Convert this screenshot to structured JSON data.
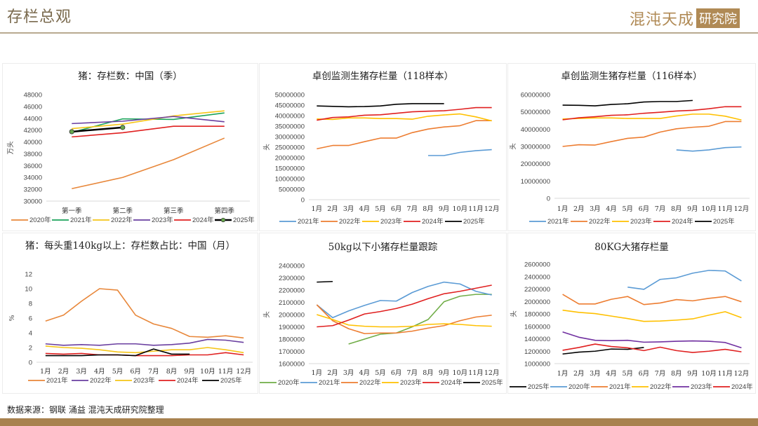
{
  "header": {
    "title": "存栏总观",
    "logo_main": "混沌天成",
    "logo_box": "研究院"
  },
  "footer": {
    "source": "数据来源：钢联 涌益 混沌天成研究院整理"
  },
  "colors": {
    "accent": "#a8824f",
    "2020_q": "#e8873a",
    "2021_q": "#1aa35a",
    "2022_q": "#f5c518",
    "2023_q": "#6a3fa0",
    "2024_q": "#e02020",
    "2025_q": "#000000"
  },
  "chart_data": [
    {
      "id": "quarterly",
      "type": "line",
      "title": "猪：存栏数：中国（季）",
      "ylabel": "万头",
      "xlabel": "",
      "categories": [
        "第一季",
        "第二季",
        "第三季",
        "第四季"
      ],
      "ylim": [
        30000,
        48000
      ],
      "ystep": 2000,
      "grid": false,
      "legend": "bottom",
      "series": [
        {
          "name": "2020年",
          "color": "#e8873a",
          "values": [
            32100,
            34000,
            37000,
            40650
          ]
        },
        {
          "name": "2021年",
          "color": "#1aa35a",
          "values": [
            41600,
            43900,
            43800,
            44900
          ]
        },
        {
          "name": "2022年",
          "color": "#f5c518",
          "values": [
            42250,
            43000,
            44400,
            45250
          ]
        },
        {
          "name": "2023年",
          "color": "#6a3fa0",
          "values": [
            43100,
            43500,
            44300,
            43400
          ]
        },
        {
          "name": "2024年",
          "color": "#e02020",
          "values": [
            40850,
            41550,
            42650,
            42650
          ]
        },
        {
          "name": "2025年",
          "color": "#000000",
          "marker": true,
          "values": [
            41730,
            42450,
            null,
            null
          ]
        }
      ]
    },
    {
      "id": "zhuochuang118",
      "type": "line",
      "title": "卓创监测生猪存栏量（118样本）",
      "ylabel": "头",
      "xlabel": "",
      "categories": [
        "1月",
        "2月",
        "3月",
        "4月",
        "5月",
        "6月",
        "7月",
        "8月",
        "9月",
        "10月",
        "11月",
        "12月"
      ],
      "ylim": [
        0,
        50000000
      ],
      "ystep": 5000000,
      "grid": false,
      "legend": "bottom",
      "series": [
        {
          "name": "2021年",
          "color": "#5b9bd5",
          "values": [
            null,
            null,
            null,
            null,
            null,
            null,
            null,
            21000000,
            21000000,
            22500000,
            23300000,
            23800000
          ]
        },
        {
          "name": "2022年",
          "color": "#ed7d31",
          "values": [
            24200000,
            25800000,
            25800000,
            27600000,
            29300000,
            29300000,
            31900000,
            33600000,
            34600000,
            35200000,
            37600000,
            37600000
          ]
        },
        {
          "name": "2023年",
          "color": "#ffc000",
          "values": [
            38400000,
            38200000,
            38900000,
            38900000,
            38600000,
            38600000,
            38300000,
            39700000,
            40300000,
            40800000,
            39400000,
            37500000
          ]
        },
        {
          "name": "2024年",
          "color": "#e02020",
          "values": [
            37800000,
            39100000,
            39400000,
            40200000,
            40400000,
            41100000,
            41800000,
            42100000,
            42300000,
            43000000,
            43800000,
            43800000
          ]
        },
        {
          "name": "2025年",
          "color": "#000000",
          "values": [
            44600000,
            44400000,
            44200000,
            44300000,
            44600000,
            45400000,
            45700000,
            45700000,
            45700000,
            null,
            null,
            null
          ]
        }
      ]
    },
    {
      "id": "zhuochuang116",
      "type": "line",
      "title": "卓创监测生猪存栏量（116样本）",
      "ylabel": "头",
      "xlabel": "",
      "categories": [
        "1月",
        "2月",
        "3月",
        "4月",
        "5月",
        "6月",
        "7月",
        "8月",
        "9月",
        "10月",
        "11月",
        "12月"
      ],
      "ylim": [
        0,
        60000000
      ],
      "ystep": 10000000,
      "grid": false,
      "legend": "bottom",
      "series": [
        {
          "name": "2021年",
          "color": "#5b9bd5",
          "values": [
            null,
            null,
            null,
            null,
            null,
            null,
            null,
            28000000,
            27300000,
            28000000,
            29300000,
            29700000
          ]
        },
        {
          "name": "2022年",
          "color": "#ed7d31",
          "values": [
            30000000,
            31000000,
            30800000,
            32800000,
            34700000,
            35400000,
            38300000,
            40200000,
            41100000,
            41700000,
            44400000,
            44400000
          ]
        },
        {
          "name": "2023年",
          "color": "#ffc000",
          "values": [
            45900000,
            46200000,
            46500000,
            46500000,
            46200000,
            46200000,
            46200000,
            47600000,
            48700000,
            48700000,
            47500000,
            45300000
          ]
        },
        {
          "name": "2024年",
          "color": "#e02020",
          "values": [
            45400000,
            46600000,
            47200000,
            48000000,
            48300000,
            49200000,
            49800000,
            50500000,
            50900000,
            51800000,
            53000000,
            53000000
          ]
        },
        {
          "name": "2025年",
          "color": "#000000",
          "values": [
            53900000,
            53800000,
            53500000,
            54300000,
            54700000,
            55700000,
            56000000,
            56000000,
            56600000,
            null,
            null,
            null
          ]
        }
      ]
    },
    {
      "id": "share140kg",
      "type": "line",
      "title": "猪：每头重140kg以上：存栏数占比：中国（月）",
      "ylabel": "%",
      "xlabel": "",
      "categories": [
        "1月",
        "2月",
        "3月",
        "4月",
        "5月",
        "6月",
        "7月",
        "8月",
        "9月",
        "10月",
        "11月",
        "12月"
      ],
      "ylim": [
        0,
        12
      ],
      "ystep": 2,
      "grid": false,
      "legend": "bottom",
      "series": [
        {
          "name": "2021年",
          "color": "#e8873a",
          "values": [
            5.6,
            6.4,
            8.3,
            10.0,
            9.8,
            6.4,
            5.2,
            4.6,
            3.5,
            3.4,
            3.6,
            3.3
          ]
        },
        {
          "name": "2022年",
          "color": "#6a3fa0",
          "values": [
            2.5,
            2.3,
            2.4,
            2.3,
            2.5,
            2.5,
            2.3,
            2.4,
            2.6,
            3.1,
            3.0,
            2.7
          ]
        },
        {
          "name": "2023年",
          "color": "#f5c518",
          "values": [
            2.2,
            2.0,
            1.9,
            1.7,
            1.4,
            1.3,
            1.5,
            1.7,
            1.7,
            2.0,
            1.7,
            1.3
          ]
        },
        {
          "name": "2024年",
          "color": "#e02020",
          "values": [
            1.2,
            1.1,
            1.2,
            1.0,
            1.0,
            0.9,
            0.9,
            0.9,
            1.0,
            1.0,
            1.3,
            1.0
          ]
        },
        {
          "name": "2025年",
          "color": "#000000",
          "values": [
            0.9,
            0.9,
            0.9,
            1.0,
            1.0,
            0.9,
            1.8,
            1.1,
            1.1,
            null,
            null,
            null
          ]
        }
      ]
    },
    {
      "id": "piglet50kg",
      "type": "line",
      "title": "50kg以下小猪存栏量跟踪",
      "ylabel": "头",
      "xlabel": "",
      "categories": [
        "1月",
        "2月",
        "3月",
        "4月",
        "5月",
        "6月",
        "7月",
        "8月",
        "9月",
        "10月",
        "11月",
        "12月"
      ],
      "ylim": [
        1600000,
        2400000
      ],
      "ystep": 100000,
      "grid": false,
      "legend": "bottom",
      "series": [
        {
          "name": "2020年",
          "color": "#70ad47",
          "values": [
            null,
            null,
            1760000,
            1800000,
            1840000,
            1850000,
            1900000,
            1960000,
            2105000,
            2150000,
            2165000,
            2165000
          ]
        },
        {
          "name": "2021年",
          "color": "#5b9bd5",
          "values": [
            2080000,
            1975000,
            2030000,
            2075000,
            2115000,
            2110000,
            2180000,
            2230000,
            2265000,
            2250000,
            2190000,
            2160000
          ]
        },
        {
          "name": "2022年",
          "color": "#ed7d31",
          "values": [
            2080000,
            1950000,
            1885000,
            1845000,
            1850000,
            1850000,
            1865000,
            1890000,
            1910000,
            1950000,
            1980000,
            1995000
          ]
        },
        {
          "name": "2023年",
          "color": "#ffc000",
          "values": [
            2000000,
            1960000,
            1915000,
            1905000,
            1900000,
            1900000,
            1905000,
            1920000,
            1925000,
            1920000,
            1910000,
            1905000
          ]
        },
        {
          "name": "2024年",
          "color": "#e02020",
          "values": [
            1900000,
            1910000,
            1955000,
            2005000,
            2025000,
            2050000,
            2085000,
            2130000,
            2170000,
            2190000,
            2215000,
            2240000
          ]
        },
        {
          "name": "2025年",
          "color": "#000000",
          "values": [
            2265000,
            2270000,
            null,
            null,
            null,
            null,
            null,
            null,
            null,
            null,
            null,
            null
          ]
        }
      ]
    },
    {
      "id": "finisher80kg",
      "type": "line",
      "title": "80KG大猪存栏量",
      "ylabel": "头",
      "xlabel": "",
      "categories": [
        "1月",
        "2月",
        "3月",
        "4月",
        "5月",
        "6月",
        "7月",
        "8月",
        "9月",
        "10月",
        "11月",
        "12月"
      ],
      "ylim": [
        1000000,
        2600000
      ],
      "ystep": 200000,
      "grid": false,
      "legend": "bottom",
      "series": [
        {
          "name": "2025年",
          "color": "#000000",
          "values": [
            1155000,
            1185000,
            1200000,
            1235000,
            1230000,
            1260000,
            null,
            null,
            null,
            null,
            null,
            null
          ]
        },
        {
          "name": "2020年",
          "color": "#5b9bd5",
          "values": [
            null,
            null,
            null,
            null,
            2230000,
            2195000,
            2355000,
            2380000,
            2455000,
            2500000,
            2490000,
            2330000
          ]
        },
        {
          "name": "2021年",
          "color": "#ed7d31",
          "values": [
            2115000,
            1960000,
            1960000,
            2035000,
            2080000,
            1950000,
            1975000,
            2030000,
            2010000,
            2050000,
            2080000,
            1995000
          ]
        },
        {
          "name": "2022年",
          "color": "#ffc000",
          "values": [
            1860000,
            1825000,
            1805000,
            1765000,
            1725000,
            1680000,
            1685000,
            1700000,
            1720000,
            1780000,
            1835000,
            1740000
          ]
        },
        {
          "name": "2023年",
          "color": "#7030a0",
          "values": [
            1510000,
            1425000,
            1375000,
            1370000,
            1375000,
            1345000,
            1350000,
            1360000,
            1365000,
            1360000,
            1340000,
            1255000
          ]
        },
        {
          "name": "2024年",
          "color": "#e02020",
          "values": [
            1215000,
            1260000,
            1315000,
            1275000,
            1255000,
            1210000,
            1265000,
            1210000,
            1180000,
            1200000,
            1230000,
            1190000
          ]
        }
      ]
    }
  ]
}
